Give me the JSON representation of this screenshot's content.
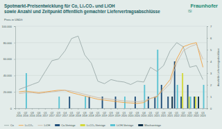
{
  "chart_data": {
    "type": "line",
    "title": "Spotmarkt-Preisentwicklung für Co, Li₂CO₃ und LiOH sowie Anzahl und Zeitpunkt öffentlich gemachter Liefervertragsabschlüsse",
    "ylabel": "Preis in USD/t",
    "y2label": "Anzahl der Liefervertragsabschlüsse",
    "annotations": [
      "Fraunhofer",
      "ISI"
    ],
    "categories": [
      "Q1 2016",
      "Q2 2016",
      "Q3 2016",
      "Q4 2016",
      "Q1 2017",
      "Q2 2017",
      "Q3 2017",
      "Q4 2017",
      "Q1 2018",
      "Q2 2018",
      "Q3 2018",
      "Q4 2018",
      "Q1 2019",
      "Q2 2019",
      "Q3 2019",
      "Q4 2019",
      "Q1 2020",
      "Q2 2020",
      "Q3 2020",
      "Q4 2020",
      "Q1 2021",
      "Q2 2021",
      "Q3 2021",
      "Q4 2021",
      "Q1 2022",
      "Q2 2022",
      "Q3 2022",
      "Q4 2022",
      "Q1 2023"
    ],
    "ylim": [
      0,
      100000
    ],
    "yticks": [
      0,
      {
        "value": 20000,
        "label": "20.000"
      },
      {
        "value": 40000,
        "label": "40.000"
      },
      {
        "value": 60000,
        "label": "60.000"
      },
      {
        "value": 80000,
        "label": "80.000"
      },
      {
        "value": 100000,
        "label": "100.000"
      }
    ],
    "y2lim": [
      0,
      7
    ],
    "y2ticks": [
      0,
      1,
      2,
      3,
      4,
      5,
      6,
      7
    ],
    "grid": true,
    "legend": "bottom",
    "series": [
      {
        "name": "Co",
        "type": "line",
        "color": "#9aa9a8",
        "values": [
          23000,
          26000,
          29000,
          32000,
          45000,
          58000,
          60000,
          70000,
          85000,
          88000,
          65000,
          55000,
          33000,
          30000,
          35000,
          33000,
          32000,
          29000,
          33000,
          32000,
          50000,
          45000,
          52000,
          70000,
          80000,
          75000,
          50000,
          52000,
          35000
        ]
      },
      {
        "name": "Li₂CO₃",
        "type": "line",
        "color": "#f0a040",
        "values": [
          20000,
          21000,
          20000,
          19000,
          20000,
          21000,
          22000,
          22000,
          19000,
          17000,
          15000,
          13000,
          11000,
          10000,
          9000,
          8000,
          7000,
          6500,
          6000,
          7000,
          12000,
          14000,
          25000,
          35000,
          60000,
          75000,
          78000,
          80000,
          50000
        ]
      },
      {
        "name": "LiOH",
        "type": "line",
        "color": "#cbbaa8",
        "values": [
          18000,
          19000,
          19000,
          18000,
          19000,
          20000,
          21000,
          22000,
          21000,
          19000,
          17000,
          15000,
          13000,
          12000,
          11000,
          10000,
          9000,
          8500,
          8000,
          9000,
          12000,
          15000,
          22000,
          30000,
          55000,
          70000,
          75000,
          78000,
          60000
        ]
      },
      {
        "name": "Co-Verträge",
        "type": "bar",
        "axis": "y2",
        "color": "#1f4e79",
        "values": [
          0,
          0,
          0,
          0,
          0,
          0,
          0,
          0,
          1,
          0,
          0,
          1,
          0,
          1,
          0,
          1,
          0,
          0,
          1,
          0,
          1,
          1,
          2,
          1,
          4,
          1,
          2,
          1,
          0
        ]
      },
      {
        "name": "Li₂CO₃-Verträge",
        "type": "bar",
        "axis": "y2",
        "color": "#d2d83a",
        "values": [
          0,
          0,
          0,
          0,
          0,
          0,
          0,
          0,
          0,
          0,
          0,
          0,
          0,
          0,
          0,
          0,
          0,
          0,
          0,
          0,
          0,
          0,
          0,
          0,
          0,
          3,
          1,
          1,
          0
        ]
      },
      {
        "name": "LiOH-Verträge",
        "type": "bar",
        "axis": "y2",
        "color": "#5bc3d3",
        "values": [
          0,
          3,
          0,
          0,
          0,
          0,
          1,
          0,
          0,
          0,
          1,
          0,
          0,
          0,
          0,
          0,
          1,
          0,
          0,
          2,
          0,
          5,
          0,
          0,
          2,
          0,
          1,
          0,
          2
        ]
      },
      {
        "name": "Mischverträge",
        "type": "bar",
        "axis": "y2",
        "color": "#0d2f47",
        "values": [
          0,
          0,
          0,
          0,
          0,
          0,
          0,
          0,
          0,
          0,
          0,
          0,
          0,
          0,
          0,
          0,
          0,
          0,
          0,
          0,
          0,
          0,
          0,
          1,
          0,
          0,
          0,
          1,
          0
        ]
      }
    ]
  }
}
